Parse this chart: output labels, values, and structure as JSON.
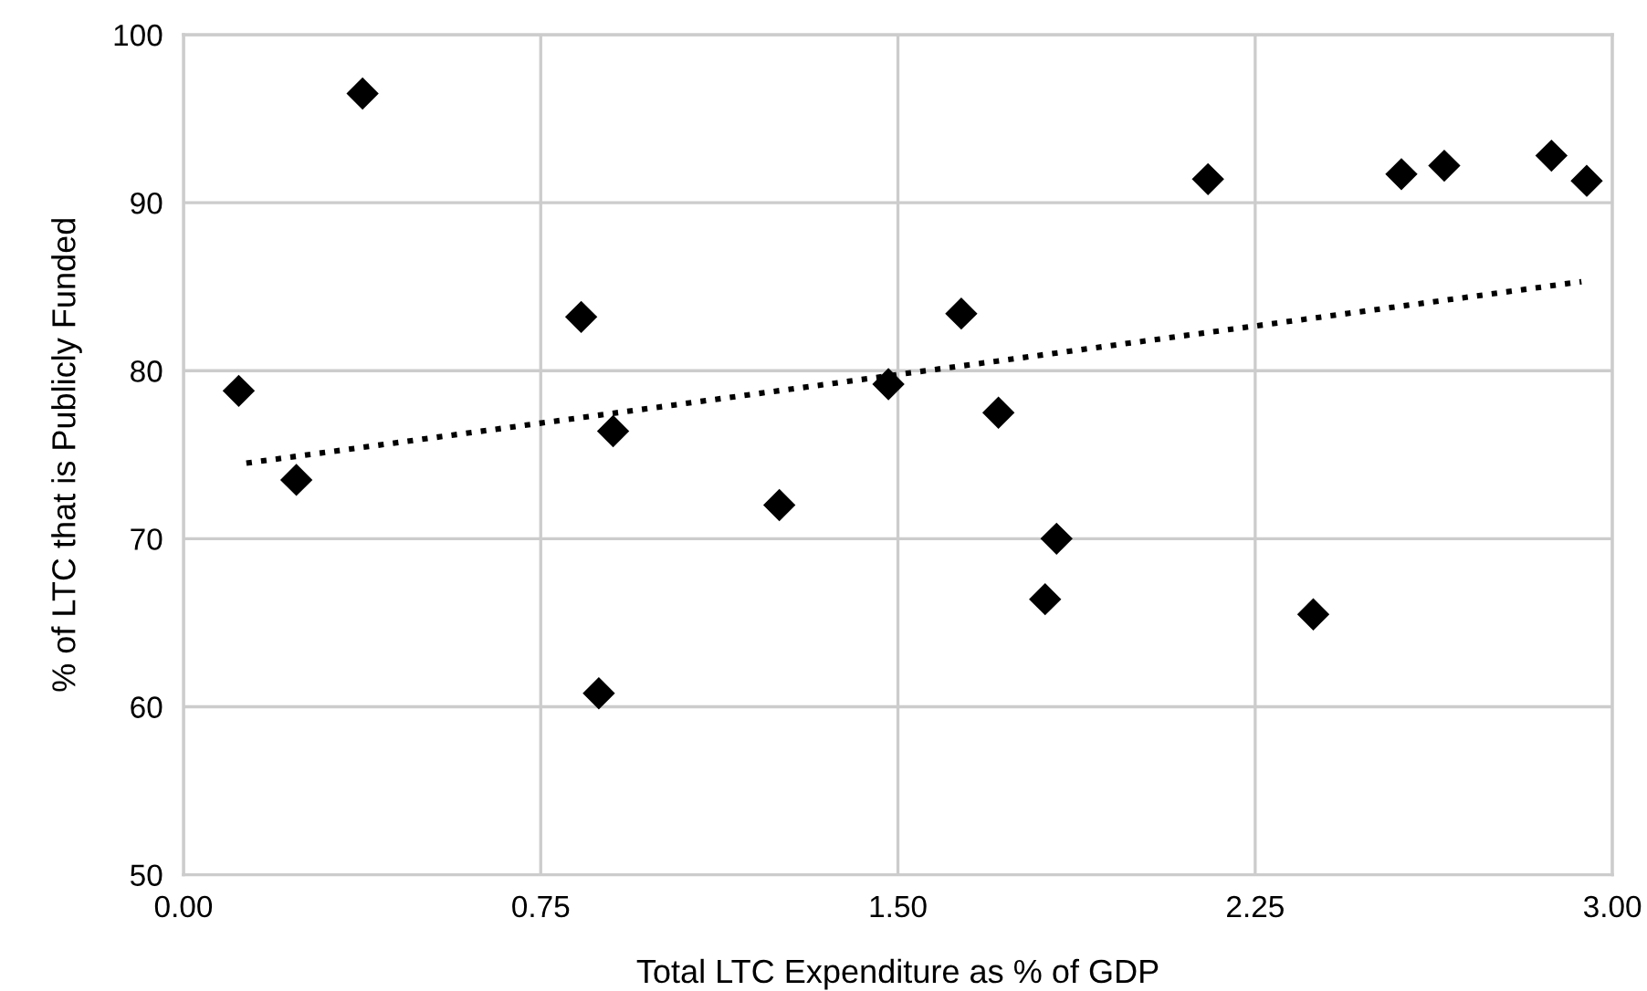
{
  "chart_data": {
    "type": "scatter",
    "xlabel": "Total LTC Expenditure as % of GDP",
    "ylabel": "% of LTC that is Publicly Funded",
    "x": [
      0.116,
      0.237,
      0.376,
      0.835,
      0.902,
      0.872,
      1.251,
      1.48,
      1.633,
      1.711,
      1.833,
      1.809,
      2.151,
      2.372,
      2.557,
      2.647,
      2.872,
      2.946
    ],
    "series": [
      {
        "color": "#000000",
        "marker": "diamond",
        "values": [
          78.8,
          73.5,
          96.5,
          83.2,
          76.4,
          60.8,
          72.0,
          79.2,
          83.4,
          77.5,
          70.0,
          66.4,
          91.4,
          65.5,
          91.7,
          92.2,
          92.8,
          91.3
        ]
      },
      {
        "type": "line",
        "color": "#000000",
        "line_style": "dotted",
        "marker": "none",
        "x": [
          0.132,
          2.935
        ],
        "values": [
          74.5,
          85.3
        ]
      }
    ],
    "xlim": [
      0,
      3
    ],
    "ylim": [
      50,
      100
    ],
    "xticks": [
      {
        "value": 0,
        "label": "0.00"
      },
      {
        "value": 0.75,
        "label": "0.75"
      },
      {
        "value": 1.5,
        "label": "1.50"
      },
      {
        "value": 2.25,
        "label": "2.25"
      },
      {
        "value": 3,
        "label": "3.00"
      }
    ],
    "yticks": [
      50,
      60,
      70,
      80,
      90,
      100
    ],
    "grid": true,
    "legend": false
  }
}
